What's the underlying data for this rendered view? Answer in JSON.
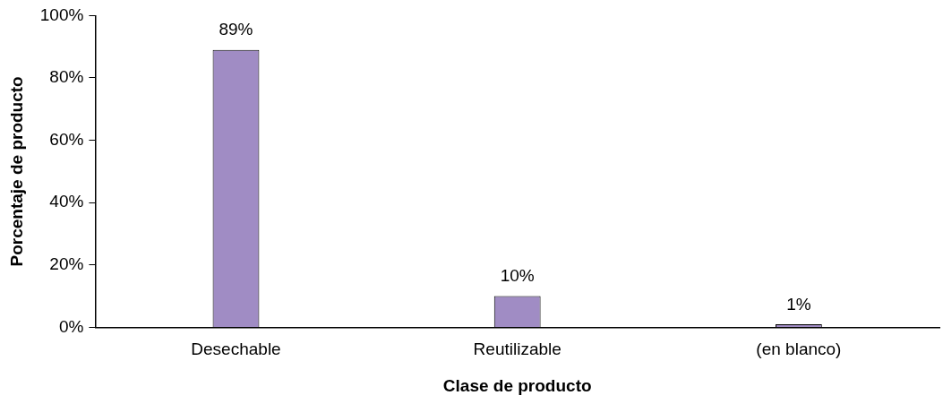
{
  "chart_data": {
    "type": "bar",
    "xlabel": "Clase de producto",
    "ylabel": "Porcentaje de producto",
    "categories": [
      "Desechable",
      "Reutilizable",
      "(en blanco)"
    ],
    "values": [
      89,
      10,
      1
    ],
    "value_labels": [
      "89%",
      "10%",
      "1%"
    ],
    "color": "#a08cc4",
    "ylim": [
      0,
      100
    ],
    "yticks": [
      {
        "value": 0,
        "label": "0%"
      },
      {
        "value": 20,
        "label": "20%"
      },
      {
        "value": 40,
        "label": "40%"
      },
      {
        "value": 60,
        "label": "60%"
      },
      {
        "value": 80,
        "label": "80%"
      },
      {
        "value": 100,
        "label": "100%"
      }
    ],
    "grid": false,
    "legend": false
  }
}
